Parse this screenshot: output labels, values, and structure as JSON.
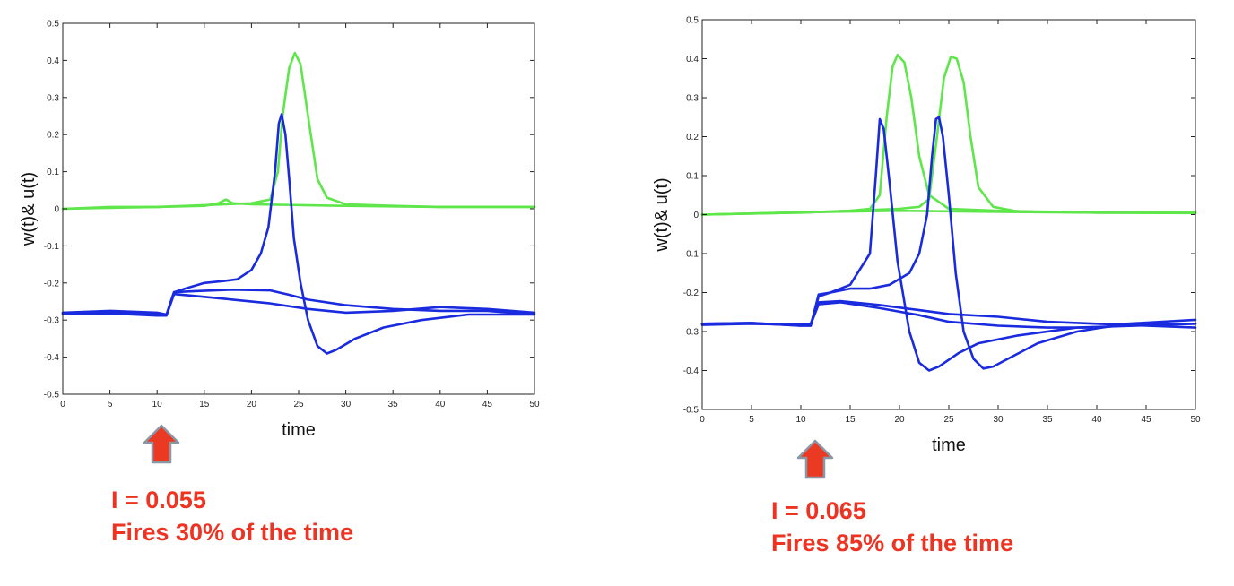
{
  "colors": {
    "green": "#5ee64a",
    "blue": "#1a2bdf",
    "arrow_fill": "#ea3a24",
    "arrow_stroke": "#8a97a6",
    "caption": "#ee3322"
  },
  "chart_data": [
    {
      "type": "line",
      "xlabel": "time",
      "ylabel": "w(t)& u(t)",
      "xlim": [
        0,
        50
      ],
      "ylim": [
        -0.5,
        0.5
      ],
      "xticks": [
        0,
        5,
        10,
        15,
        20,
        25,
        30,
        35,
        40,
        45,
        50
      ],
      "yticks": [
        -0.5,
        -0.4,
        -0.3,
        -0.2,
        -0.1,
        0,
        0.1,
        0.2,
        0.3,
        0.4,
        0.5
      ],
      "grid": false,
      "caption": {
        "line1": "I = 0.055",
        "line2": "Fires 30% of the time"
      },
      "series": [
        {
          "color": "green",
          "x": [
            0,
            5,
            10,
            15,
            16.5,
            17.3,
            18,
            20,
            30,
            40,
            50
          ],
          "y": [
            0,
            0.005,
            0.005,
            0.008,
            0.015,
            0.025,
            0.015,
            0.012,
            0.008,
            0.005,
            0.005
          ]
        },
        {
          "color": "green",
          "x": [
            0,
            10,
            15,
            20,
            21,
            22,
            22.8,
            23.3,
            24,
            24.6,
            25.2,
            26,
            27,
            28,
            30,
            35,
            40,
            50
          ],
          "y": [
            0,
            0.005,
            0.01,
            0.015,
            0.02,
            0.025,
            0.1,
            0.25,
            0.38,
            0.42,
            0.39,
            0.25,
            0.08,
            0.03,
            0.012,
            0.008,
            0.005,
            0.005
          ]
        },
        {
          "color": "blue",
          "x": [
            0,
            5,
            10,
            11,
            11.8,
            13,
            15,
            17,
            18.5,
            20,
            21,
            21.8,
            22.5,
            22.9,
            23.2,
            23.6,
            24,
            24.5,
            25.2,
            26,
            27,
            28,
            29,
            31,
            34,
            38,
            43,
            50
          ],
          "y": [
            -0.28,
            -0.275,
            -0.28,
            -0.285,
            -0.225,
            -0.215,
            -0.2,
            -0.195,
            -0.19,
            -0.165,
            -0.12,
            -0.05,
            0.1,
            0.23,
            0.255,
            0.2,
            0.08,
            -0.08,
            -0.2,
            -0.3,
            -0.37,
            -0.39,
            -0.38,
            -0.35,
            -0.32,
            -0.3,
            -0.285,
            -0.285
          ]
        },
        {
          "color": "blue",
          "x": [
            0,
            5,
            10,
            11,
            11.8,
            14,
            18,
            22,
            24,
            26,
            30,
            35,
            40,
            45,
            50
          ],
          "y": [
            -0.28,
            -0.28,
            -0.285,
            -0.285,
            -0.225,
            -0.222,
            -0.218,
            -0.22,
            -0.232,
            -0.245,
            -0.26,
            -0.27,
            -0.275,
            -0.275,
            -0.285
          ]
        },
        {
          "color": "blue",
          "x": [
            0,
            5,
            10,
            11,
            11.8,
            14,
            18,
            22,
            26,
            30,
            35,
            40,
            45,
            50
          ],
          "y": [
            -0.283,
            -0.282,
            -0.288,
            -0.288,
            -0.23,
            -0.235,
            -0.245,
            -0.255,
            -0.27,
            -0.28,
            -0.275,
            -0.265,
            -0.27,
            -0.28
          ]
        }
      ]
    },
    {
      "type": "line",
      "xlabel": "time",
      "ylabel": "w(t)& u(t)",
      "xlim": [
        0,
        50
      ],
      "ylim": [
        -0.5,
        0.5
      ],
      "xticks": [
        0,
        5,
        10,
        15,
        20,
        25,
        30,
        35,
        40,
        45,
        50
      ],
      "yticks": [
        -0.5,
        -0.4,
        -0.3,
        -0.2,
        -0.1,
        0,
        0.1,
        0.2,
        0.3,
        0.4,
        0.5
      ],
      "grid": false,
      "caption": {
        "line1": "I = 0.065",
        "line2": "Fires 85% of the time"
      },
      "series": [
        {
          "color": "green",
          "x": [
            0,
            10,
            15,
            17,
            18,
            18.7,
            19.3,
            19.8,
            20.5,
            21.2,
            22,
            23,
            25,
            30,
            40,
            50
          ],
          "y": [
            0,
            0.005,
            0.01,
            0.015,
            0.05,
            0.25,
            0.38,
            0.41,
            0.39,
            0.3,
            0.15,
            0.05,
            0.015,
            0.01,
            0.005,
            0.005
          ]
        },
        {
          "color": "green",
          "x": [
            0,
            10,
            15,
            20,
            22,
            23,
            23.8,
            24.5,
            25.2,
            25.8,
            26.5,
            27.2,
            28,
            29.5,
            32,
            40,
            50
          ],
          "y": [
            0,
            0.005,
            0.01,
            0.015,
            0.02,
            0.04,
            0.2,
            0.35,
            0.405,
            0.4,
            0.34,
            0.2,
            0.07,
            0.02,
            0.008,
            0.005,
            0.005
          ]
        },
        {
          "color": "green",
          "x": [
            0,
            10,
            20,
            30,
            40,
            50
          ],
          "y": [
            0,
            0.006,
            0.01,
            0.007,
            0.005,
            0.004
          ]
        },
        {
          "color": "blue",
          "x": [
            0,
            5,
            10,
            11,
            11.8,
            13,
            15,
            17,
            17.6,
            18,
            18.4,
            19,
            19.8,
            21,
            22,
            23,
            24,
            26,
            28,
            32,
            38,
            50
          ],
          "y": [
            -0.28,
            -0.278,
            -0.285,
            -0.285,
            -0.21,
            -0.2,
            -0.18,
            -0.1,
            0.1,
            0.245,
            0.22,
            0.08,
            -0.12,
            -0.3,
            -0.38,
            -0.4,
            -0.39,
            -0.355,
            -0.33,
            -0.31,
            -0.29,
            -0.28
          ]
        },
        {
          "color": "blue",
          "x": [
            0,
            5,
            10,
            11,
            11.8,
            13,
            15,
            17,
            19,
            21,
            22,
            22.8,
            23.3,
            23.7,
            24,
            24.4,
            25,
            25.7,
            26.5,
            27.5,
            28.5,
            29.5,
            31,
            34,
            38,
            43,
            50
          ],
          "y": [
            -0.28,
            -0.278,
            -0.285,
            -0.285,
            -0.205,
            -0.2,
            -0.19,
            -0.19,
            -0.18,
            -0.15,
            -0.1,
            0.0,
            0.15,
            0.245,
            0.25,
            0.2,
            0.05,
            -0.15,
            -0.3,
            -0.37,
            -0.395,
            -0.39,
            -0.37,
            -0.33,
            -0.3,
            -0.28,
            -0.27
          ]
        },
        {
          "color": "blue",
          "x": [
            0,
            5,
            10,
            11,
            11.8,
            14,
            18,
            22,
            25,
            30,
            35,
            40,
            45,
            50
          ],
          "y": [
            -0.283,
            -0.28,
            -0.283,
            -0.28,
            -0.225,
            -0.222,
            -0.232,
            -0.245,
            -0.255,
            -0.262,
            -0.275,
            -0.28,
            -0.285,
            -0.29
          ]
        },
        {
          "color": "blue",
          "x": [
            0,
            5,
            10,
            11,
            11.8,
            14,
            18,
            22,
            25,
            30,
            35,
            40,
            45,
            50
          ],
          "y": [
            -0.28,
            -0.28,
            -0.282,
            -0.282,
            -0.23,
            -0.225,
            -0.24,
            -0.258,
            -0.275,
            -0.285,
            -0.29,
            -0.29,
            -0.28,
            -0.28
          ]
        }
      ]
    }
  ]
}
